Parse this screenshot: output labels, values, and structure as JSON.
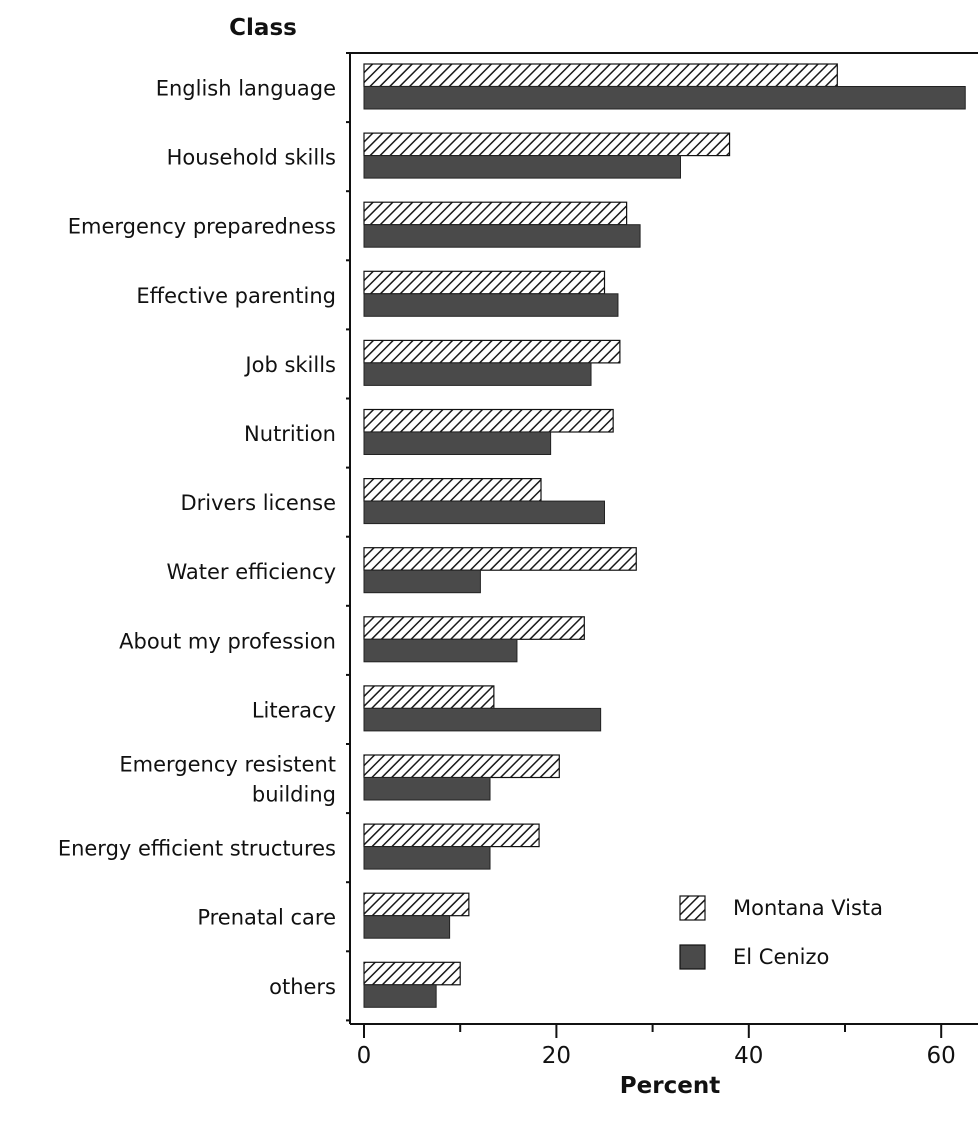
{
  "chart_data": {
    "type": "bar",
    "orientation": "horizontal",
    "title": "",
    "ylabel": "Class",
    "xlabel": "Percent",
    "xlim": [
      0,
      64
    ],
    "xticks": [
      0,
      20,
      40,
      60
    ],
    "grid": false,
    "legend_position": "bottom-right",
    "categories": [
      [
        "English language"
      ],
      [
        "Household skills"
      ],
      [
        "Emergency preparedness"
      ],
      [
        "Effective parenting"
      ],
      [
        "Job skills"
      ],
      [
        "Nutrition"
      ],
      [
        "Drivers license"
      ],
      [
        "Water efficiency"
      ],
      [
        "About my profession"
      ],
      [
        "Literacy"
      ],
      [
        "Emergency resistent",
        "building"
      ],
      [
        "Energy efficient structures"
      ],
      [
        "Prenatal care"
      ],
      [
        "others"
      ]
    ],
    "series": [
      {
        "name": "Montana Vista",
        "pattern": "hatch",
        "values": [
          49.2,
          38.0,
          27.3,
          25.0,
          26.6,
          25.9,
          18.4,
          28.3,
          22.9,
          13.5,
          20.3,
          18.2,
          10.9,
          10.0
        ]
      },
      {
        "name": "El Cenizo",
        "pattern": "solid-dark",
        "values": [
          62.5,
          32.9,
          28.7,
          26.4,
          23.6,
          19.4,
          25.0,
          12.1,
          15.9,
          24.6,
          13.1,
          13.1,
          8.9,
          7.5
        ]
      }
    ]
  },
  "colors": {
    "bar_dark": "#4a4a4a",
    "hatch_fill": "#ffffff",
    "hatch_stroke": "#1a1a1a",
    "axis": "#111111"
  }
}
